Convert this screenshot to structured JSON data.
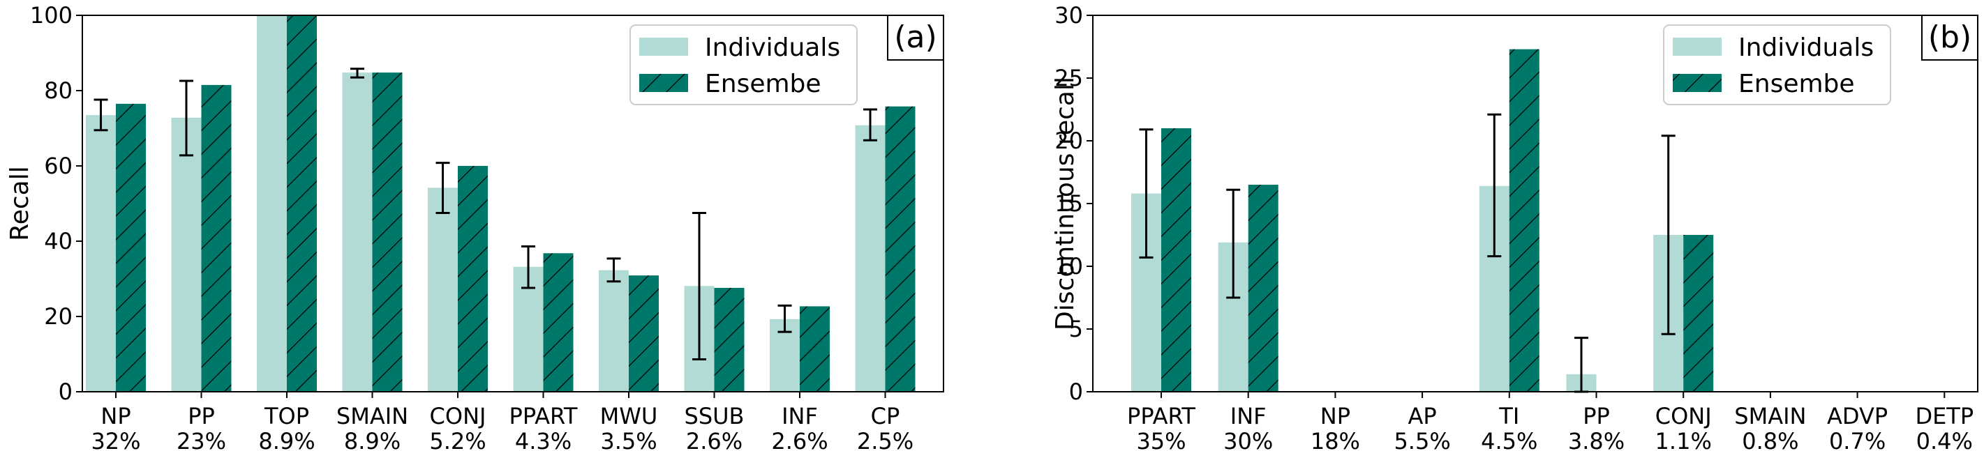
{
  "colors": {
    "individuals": "#b3dbd6",
    "ensemble": "#007869",
    "errorbar": "#000000",
    "hatch": "#000000"
  },
  "chart_data": [
    {
      "type": "bar",
      "panel_label": "(a)",
      "ylabel": "Recall",
      "ylim": [
        0,
        100
      ],
      "yticks": [
        0,
        20,
        40,
        60,
        80,
        100
      ],
      "legend_position": "top-right",
      "categories": [
        "NP",
        "PP",
        "TOP",
        "SMAIN",
        "CONJ",
        "PPART",
        "MWU",
        "SSUB",
        "INF",
        "CP"
      ],
      "category_percents": [
        "32%",
        "23%",
        "8.9%",
        "8.9%",
        "5.2%",
        "4.3%",
        "3.5%",
        "2.6%",
        "2.6%",
        "2.5%"
      ],
      "series": [
        {
          "name": "Individuals",
          "values": [
            73.5,
            72.8,
            100,
            84.8,
            54.2,
            33.2,
            32.3,
            28.1,
            19.3,
            70.8
          ],
          "error_low": [
            69.5,
            62.8,
            100,
            83.5,
            47.5,
            27.6,
            29.3,
            8.6,
            15.9,
            66.8
          ],
          "error_high": [
            77.6,
            82.6,
            100,
            85.8,
            60.8,
            38.6,
            35.4,
            47.5,
            22.9,
            75.0
          ]
        },
        {
          "name": "Ensembe",
          "values": [
            76.5,
            81.5,
            100,
            84.8,
            60.0,
            36.8,
            30.9,
            27.6,
            22.7,
            75.8
          ]
        }
      ]
    },
    {
      "type": "bar",
      "panel_label": "(b)",
      "ylabel": "Discontinuous recall",
      "ylim": [
        0,
        30
      ],
      "yticks": [
        0,
        5,
        10,
        15,
        20,
        25,
        30
      ],
      "legend_position": "top-right",
      "categories": [
        "PPART",
        "INF",
        "NP",
        "AP",
        "TI",
        "PP",
        "CONJ",
        "SMAIN",
        "ADVP",
        "DETP"
      ],
      "category_percents": [
        "35%",
        "30%",
        "18%",
        "5.5%",
        "4.5%",
        "3.8%",
        "1.1%",
        "0.8%",
        "0.7%",
        "0.4%"
      ],
      "series": [
        {
          "name": "Individuals",
          "values": [
            15.8,
            11.9,
            0,
            0,
            16.4,
            1.4,
            12.5,
            0,
            0,
            0
          ],
          "error_low": [
            10.7,
            7.5,
            0,
            0,
            10.8,
            0,
            4.6,
            0,
            0,
            0
          ],
          "error_high": [
            20.9,
            16.1,
            0,
            0,
            22.1,
            4.3,
            20.4,
            0,
            0,
            0
          ]
        },
        {
          "name": "Ensembe",
          "values": [
            21.0,
            16.5,
            0,
            0,
            27.3,
            0,
            12.5,
            0,
            0,
            0
          ]
        }
      ]
    }
  ]
}
